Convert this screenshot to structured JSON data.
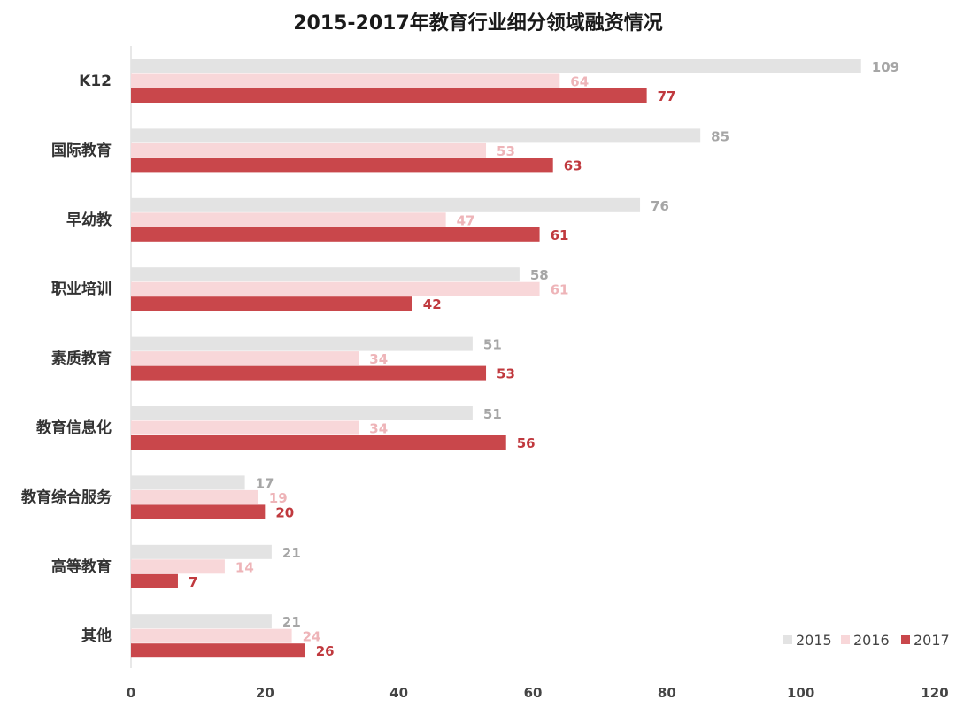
{
  "chart_data": {
    "type": "bar",
    "orientation": "horizontal",
    "title": "2015-2017年教育行业细分领域融资情况",
    "categories": [
      "K12",
      "国际教育",
      "早幼教",
      "职业培训",
      "素质教育",
      "教育信息化",
      "教育综合服务",
      "高等教育",
      "其他"
    ],
    "series": [
      {
        "name": "2015",
        "color": "#e3e3e3",
        "label_color": "#a6a6a6",
        "values": [
          109,
          85,
          76,
          58,
          51,
          51,
          17,
          21,
          21
        ]
      },
      {
        "name": "2016",
        "color": "#f8d7d9",
        "label_color": "#eeb4b8",
        "values": [
          64,
          53,
          47,
          61,
          34,
          34,
          19,
          14,
          24
        ]
      },
      {
        "name": "2017",
        "color": "#c9474b",
        "label_color": "#c0393e",
        "values": [
          77,
          63,
          61,
          42,
          53,
          56,
          20,
          7,
          26
        ]
      }
    ],
    "xlim": [
      0,
      120
    ],
    "xticks": [
      0,
      20,
      40,
      60,
      80,
      100,
      120
    ],
    "grid": false,
    "legend_position": "bottom-right"
  }
}
